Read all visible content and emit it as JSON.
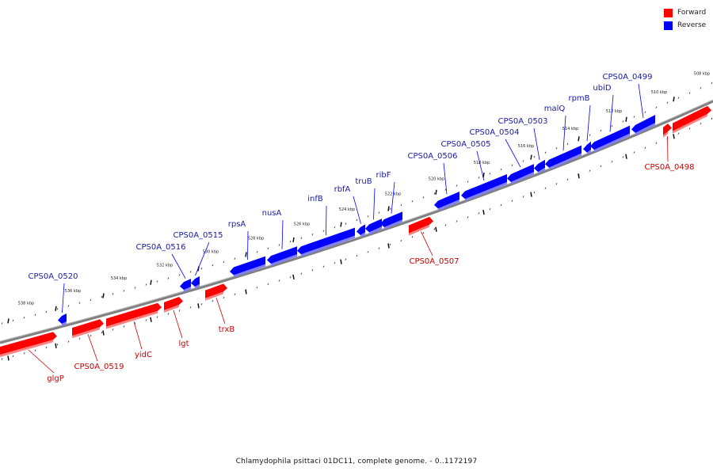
{
  "legend": {
    "forward": {
      "label": "Forward",
      "color": "#ff0000"
    },
    "reverse": {
      "label": "Reverse",
      "color": "#0000ff"
    }
  },
  "footer": "Chlamydophila psittaci 01DC11, complete genome. - 0..1172197",
  "ruler": {
    "ticks": [
      "508 kbp",
      "510 kbp",
      "512 kbp",
      "514 kbp",
      "516 kbp",
      "518 kbp",
      "520 kbp",
      "522 kbp",
      "524 kbp",
      "526 kbp",
      "528 kbp",
      "530 kbp",
      "532 kbp",
      "534 kbp",
      "536 kbp",
      "538 kbp"
    ]
  },
  "genes": {
    "reverse": [
      "CPS0A_0499",
      "ubiD",
      "rpmB",
      "malQ",
      "CPS0A_0503",
      "CPS0A_0504",
      "CPS0A_0505",
      "CPS0A_0506",
      "ribF",
      "truB",
      "rbfA",
      "infB",
      "nusA",
      "rpsA",
      "CPS0A_0515",
      "CPS0A_0516",
      "CPS0A_0520"
    ],
    "forward": [
      "CPS0A_0498",
      "CPS0A_0507",
      "trxB",
      "lgt",
      "yidC",
      "CPS0A_0519",
      "glgP"
    ]
  }
}
